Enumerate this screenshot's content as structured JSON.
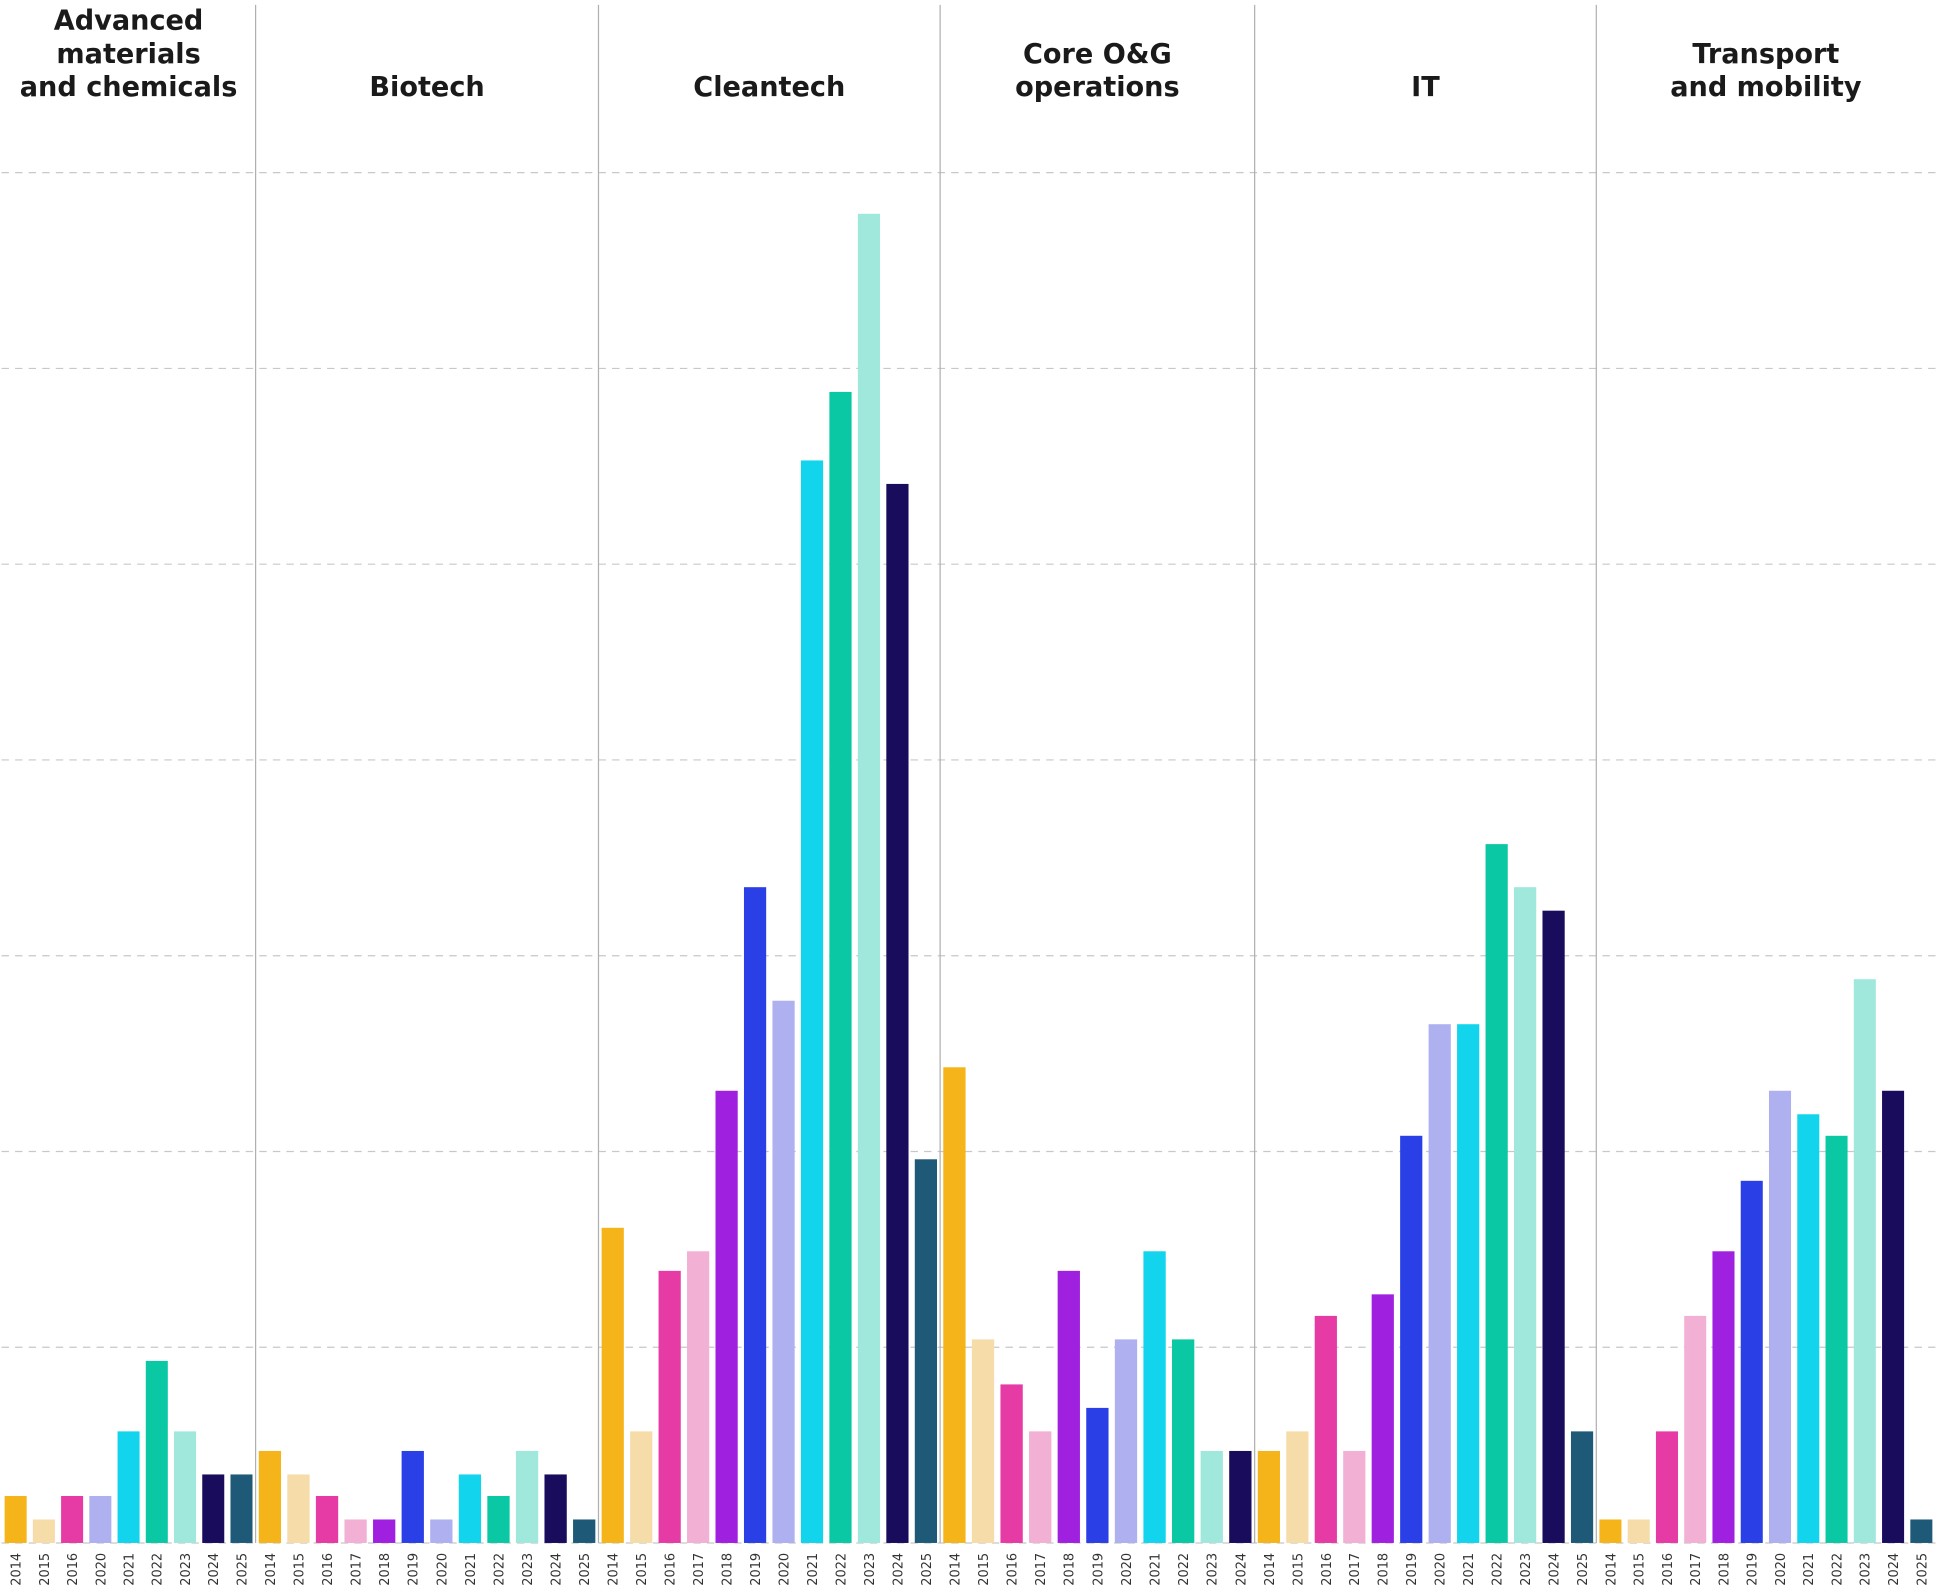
{
  "chart_data": {
    "type": "bar",
    "ylim": [
      0,
      70
    ],
    "yticks": [
      0,
      10,
      20,
      30,
      40,
      50,
      60,
      70
    ],
    "grid": true,
    "tick_labels": false,
    "panels": [
      {
        "title_lines": [
          "Advanced",
          "materials",
          "and chemicals"
        ],
        "categories": [
          "2014",
          "2015",
          "2016",
          "2020",
          "2021",
          "2022",
          "2023",
          "2024",
          "2025"
        ],
        "values": [
          2.4,
          1.2,
          2.4,
          2.4,
          5.7,
          9.3,
          5.7,
          3.5,
          3.5
        ],
        "colors": [
          "#f5b41a",
          "#f5dca8",
          "#e63aa5",
          "#aeb0f0",
          "#12d4ec",
          "#0bc8a4",
          "#a0e8dc",
          "#1a0c5c",
          "#1e5a78"
        ]
      },
      {
        "title_lines": [
          "Biotech"
        ],
        "categories": [
          "2014",
          "2015",
          "2016",
          "2017",
          "2018",
          "2019",
          "2020",
          "2021",
          "2022",
          "2023",
          "2024",
          "2025"
        ],
        "values": [
          4.7,
          3.5,
          2.4,
          1.2,
          1.2,
          4.7,
          1.2,
          3.5,
          2.4,
          4.7,
          3.5,
          1.2
        ],
        "colors": [
          "#f5b41a",
          "#f5dca8",
          "#e63aa5",
          "#f2b0d4",
          "#a020e0",
          "#2a3fe6",
          "#aeb0f0",
          "#12d4ec",
          "#0bc8a4",
          "#a0e8dc",
          "#1a0c5c",
          "#1e5a78"
        ]
      },
      {
        "title_lines": [
          "Cleantech"
        ],
        "categories": [
          "2014",
          "2015",
          "2016",
          "2017",
          "2018",
          "2019",
          "2020",
          "2021",
          "2022",
          "2023",
          "2024",
          "2025"
        ],
        "values": [
          16.1,
          5.7,
          13.9,
          14.9,
          23.1,
          33.5,
          27.7,
          55.3,
          58.8,
          67.9,
          54.1,
          19.6
        ],
        "colors": [
          "#f5b41a",
          "#f5dca8",
          "#e63aa5",
          "#f2b0d4",
          "#a020e0",
          "#2a3fe6",
          "#aeb0f0",
          "#12d4ec",
          "#0bc8a4",
          "#a0e8dc",
          "#1a0c5c",
          "#1e5a78"
        ]
      },
      {
        "title_lines": [
          "Core O&G",
          "operations"
        ],
        "categories": [
          "2014",
          "2015",
          "2016",
          "2017",
          "2018",
          "2019",
          "2020",
          "2021",
          "2022",
          "2023",
          "2024"
        ],
        "values": [
          24.3,
          10.4,
          8.1,
          5.7,
          13.9,
          6.9,
          10.4,
          14.9,
          10.4,
          4.7,
          4.7
        ],
        "colors": [
          "#f5b41a",
          "#f5dca8",
          "#e63aa5",
          "#f2b0d4",
          "#a020e0",
          "#2a3fe6",
          "#aeb0f0",
          "#12d4ec",
          "#0bc8a4",
          "#a0e8dc",
          "#1a0c5c"
        ]
      },
      {
        "title_lines": [
          "IT"
        ],
        "categories": [
          "2014",
          "2015",
          "2016",
          "2017",
          "2018",
          "2019",
          "2020",
          "2021",
          "2022",
          "2023",
          "2024",
          "2025"
        ],
        "values": [
          4.7,
          5.7,
          11.6,
          4.7,
          12.7,
          20.8,
          26.5,
          26.5,
          35.7,
          33.5,
          32.3,
          5.7
        ],
        "colors": [
          "#f5b41a",
          "#f5dca8",
          "#e63aa5",
          "#f2b0d4",
          "#a020e0",
          "#2a3fe6",
          "#aeb0f0",
          "#12d4ec",
          "#0bc8a4",
          "#a0e8dc",
          "#1a0c5c",
          "#1e5a78"
        ]
      },
      {
        "title_lines": [
          "Transport",
          "and mobility"
        ],
        "categories": [
          "2014",
          "2015",
          "2016",
          "2017",
          "2018",
          "2019",
          "2020",
          "2021",
          "2022",
          "2023",
          "2024",
          "2025"
        ],
        "values": [
          1.2,
          1.2,
          5.7,
          11.6,
          14.9,
          18.5,
          23.1,
          21.9,
          20.8,
          28.8,
          23.1,
          1.2
        ],
        "colors": [
          "#f5b41a",
          "#f5dca8",
          "#e63aa5",
          "#f2b0d4",
          "#a020e0",
          "#2a3fe6",
          "#aeb0f0",
          "#12d4ec",
          "#0bc8a4",
          "#a0e8dc",
          "#1a0c5c",
          "#1e5a78"
        ]
      }
    ]
  }
}
